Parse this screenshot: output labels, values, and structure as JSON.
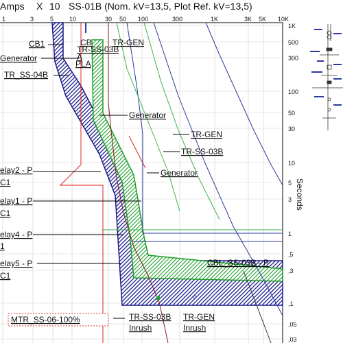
{
  "header": {
    "amps_label": "Amps",
    "x_label": "X",
    "multiplier": "10",
    "title": "SS-01B (Nom. kV=13,5, Plot Ref. kV=13,5)"
  },
  "axes": {
    "x_ticks": [
      "1",
      "3",
      "5",
      "10",
      "30",
      "50",
      "100",
      "300",
      "1K",
      "3K",
      "5K",
      "10K"
    ],
    "y_ticks": [
      "1K",
      "500",
      "300",
      "100",
      "50",
      "30",
      "10",
      "5",
      "3",
      "1",
      ",5",
      ",3",
      ",1",
      ",05",
      ",03"
    ],
    "y_label": "Seconds"
  },
  "labels": {
    "cb1": "CB1",
    "generator_top": "Generator",
    "tr_ss_04b": "TR_SS-04B",
    "cb_stack_1": "CB",
    "cb_stack_2": "TR-SS-03B",
    "cb_stack_3": "A",
    "cb_stack_4": "PLA",
    "cb_stack_5": "TR-GEN",
    "generator_mid": "Generator",
    "tr_gen_right": "TR-GEN",
    "tr_ss_03b_right": "TR-SS-03B",
    "generator_low": "Generator",
    "relay2": "elay2 - P",
    "relay2_sub": "C1",
    "relay1": "elay1 - P",
    "relay1_sub": "C1",
    "relay4": "elay4 - P",
    "relay4_sub": "1",
    "relay5": "elay5 - P",
    "relay5_sub": "C1",
    "cbl": "CBL_SS-03B - P",
    "mtr": "MTR_SS-06-100%",
    "tr_ss_03b_inrush": "TR-SS-03B",
    "tr_ss_03b_inrush_sub": "Inrush",
    "tr_gen_inrush": "TR-GEN",
    "tr_gen_inrush_sub": "Inrush"
  },
  "colors": {
    "grid": "#cfcfcf",
    "blue_band": "#1a1a8c",
    "green_band": "#1e9e2a",
    "red_curve": "#e02020",
    "dark_red_curve": "#8b1a1a",
    "blue_line": "#2a3aa0",
    "green_line": "#3bb34a",
    "mtr_box": "#d83030"
  }
}
